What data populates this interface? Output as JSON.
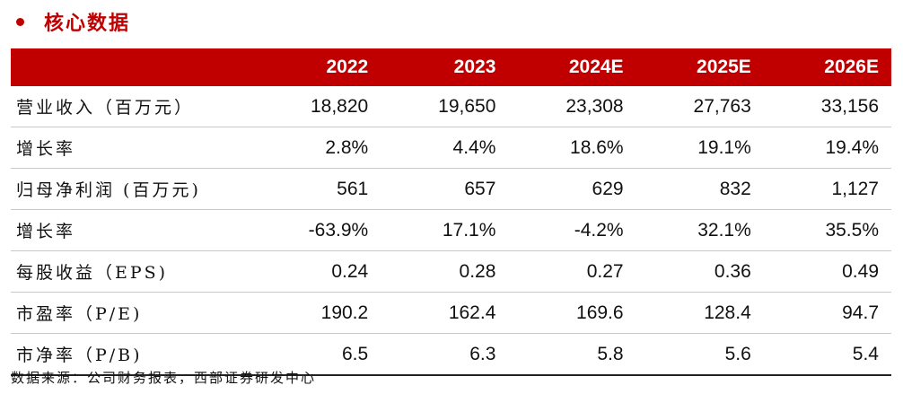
{
  "title": "核心数据",
  "table": {
    "headers": [
      "",
      "2022",
      "2023",
      "2024E",
      "2025E",
      "2026E"
    ],
    "rows": [
      {
        "label": "营业收入（百万元）",
        "values": [
          "18,820",
          "19,650",
          "23,308",
          "27,763",
          "33,156"
        ]
      },
      {
        "label": "增长率",
        "values": [
          "2.8%",
          "4.4%",
          "18.6%",
          "19.1%",
          "19.4%"
        ]
      },
      {
        "label": "归母净利润 (百万元)",
        "values": [
          "561",
          "657",
          "629",
          "832",
          "1,127"
        ]
      },
      {
        "label": "增长率",
        "values": [
          "-63.9%",
          "17.1%",
          "-4.2%",
          "32.1%",
          "35.5%"
        ]
      },
      {
        "label": "每股收益（EPS)",
        "values": [
          "0.24",
          "0.28",
          "0.27",
          "0.36",
          "0.49"
        ]
      },
      {
        "label": "市盈率（P/E)",
        "values": [
          "190.2",
          "162.4",
          "169.6",
          "128.4",
          "94.7"
        ]
      },
      {
        "label": "市净率（P/B)",
        "values": [
          "6.5",
          "6.3",
          "5.8",
          "5.6",
          "5.4"
        ]
      }
    ]
  },
  "source": "数据来源：公司财务报表，西部证券研发中心",
  "colors": {
    "accent": "#c00000"
  }
}
